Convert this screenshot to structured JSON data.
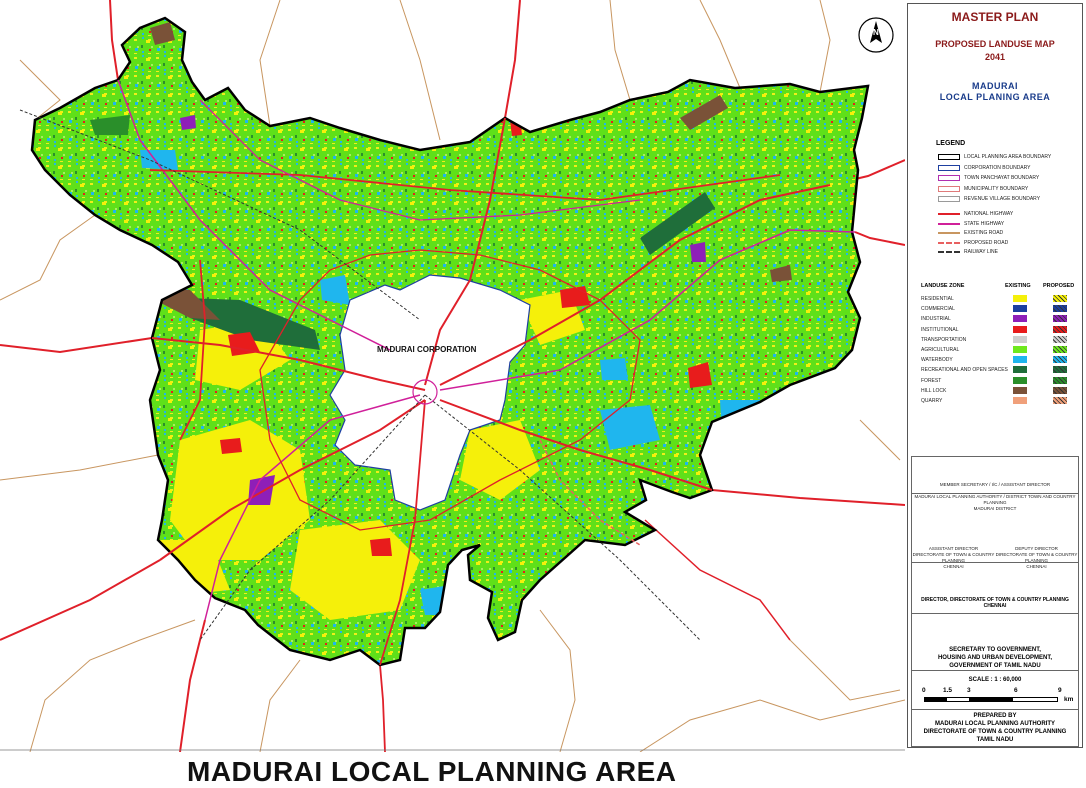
{
  "title": {
    "master_plan": "MASTER PLAN",
    "proposed": "PROPOSED LANDUSE MAP",
    "year": "2041",
    "city": "MADURAI",
    "area": "LOCAL PLANING AREA"
  },
  "legend": {
    "heading": "LEGEND",
    "boundaries": [
      {
        "label": "LOCAL PLANNING AREA BOUNDARY",
        "color": "#000000"
      },
      {
        "label": "CORPORATION BOUNDARY",
        "color": "#1e3fa0"
      },
      {
        "label": "TOWN PANCHAYAT BOUNDARY",
        "color": "#b030b0"
      },
      {
        "label": "MUNICIPALITY BOUNDARY",
        "color": "#e07a7a"
      },
      {
        "label": "REVENUE VILLAGE BOUNDARY",
        "color": "#9a9a9a"
      }
    ],
    "lines": [
      {
        "label": "NATIONAL HIGHWAY",
        "color": "#e0202a"
      },
      {
        "label": "STATE HIGHWAY",
        "color": "#d0209a"
      },
      {
        "label": "EXISTING ROAD",
        "color": "#c89660"
      },
      {
        "label": "PROPOSED ROAD",
        "color": "#e86060"
      },
      {
        "label": "RAILWAY LINE",
        "color": "#333333"
      }
    ]
  },
  "landuse": {
    "heading": "LANDUSE ZONE",
    "existing_label": "EXISTING",
    "proposed_label": "PROPOSED",
    "zones": [
      {
        "label": "RESIDENTIAL",
        "color": "#f5f00a"
      },
      {
        "label": "COMMERCIAL",
        "color": "#1b3f9e"
      },
      {
        "label": "INDUSTRIAL",
        "color": "#8e1fb8"
      },
      {
        "label": "INSTITUTIONAL",
        "color": "#e81c1c"
      },
      {
        "label": "TRANSPORTATION",
        "color": "#cfcfcf"
      },
      {
        "label": "AGRICULTURAL",
        "color": "#6ee81e"
      },
      {
        "label": "WATERBODY",
        "color": "#1fb6ee"
      },
      {
        "label": "RECREATIONAL AND OPEN SPACES",
        "color": "#1f6e3a"
      },
      {
        "label": "FOREST",
        "color": "#2a8f2a"
      },
      {
        "label": "HILL LOCK",
        "color": "#7a5238"
      },
      {
        "label": "QUARRY",
        "color": "#f0a07a"
      }
    ]
  },
  "signatures": {
    "member": "MEMBER SECRETARY / I/C / ASSISTANT DIRECTOR",
    "member2": "MADURAI LOCAL PLANNING AUTHORITY / DISTRICT TOWN AND COUNTRY PLANNING",
    "member3": "MADURAI DISTRICT",
    "asst": "ASSISTANT DIRECTOR",
    "asst2": "DIRECTORATE OF TOWN & COUNTRY PLANNING",
    "asst3": "CHENNAI",
    "deputy": "DEPUTY DIRECTOR",
    "deputy2": "DIRECTORATE OF TOWN & COUNTRY PLANNING",
    "deputy3": "CHENNAI",
    "director": "DIRECTOR, DIRECTORATE OF TOWN & COUNTRY PLANNING",
    "director2": "CHENNAI",
    "secretary1": "SECRETARY TO GOVERNMENT,",
    "secretary2": "HOUSING AND URBAN DEVELOPMENT,",
    "secretary3": "GOVERNMENT OF TAMIL NADU"
  },
  "scale": {
    "title": "SCALE : 1 : 60,000",
    "ticks": [
      "0",
      "1.5",
      "3",
      "6",
      "9"
    ],
    "unit": "km"
  },
  "prepared": {
    "line1": "PREPARED BY",
    "line2": "MADURAI LOCAL PLANNING AUTHORITY",
    "line3": "DIRECTORATE OF TOWN & COUNTRY PLANNING",
    "line4": "TAMIL NADU"
  },
  "map": {
    "corporation_label": "MADURAI CORPORATION",
    "north_arrow": "N",
    "bottom_title": "MADURAI LOCAL PLANNING AREA"
  }
}
